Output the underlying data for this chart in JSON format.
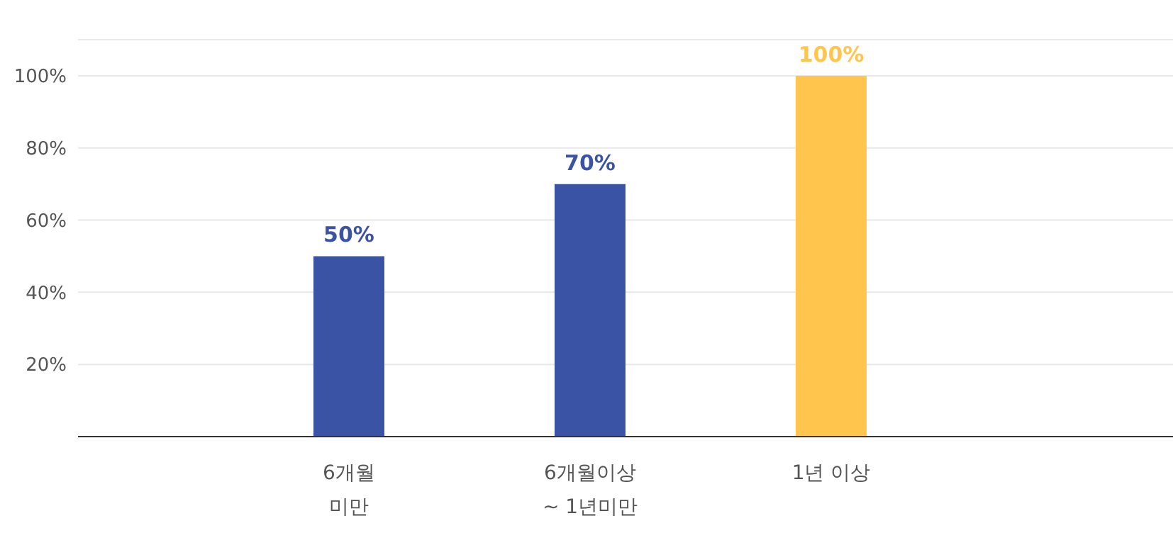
{
  "chart_data": {
    "type": "bar",
    "categories": [
      "6개월\n미만",
      "6개월이상\n~ 1년미만",
      "1년 이상"
    ],
    "values": [
      50,
      70,
      100
    ],
    "colors": [
      "#3a53a4",
      "#3a53a4",
      "#ffc54d"
    ],
    "value_labels": [
      "50%",
      "70%",
      "100%"
    ],
    "ylim": [
      0,
      110
    ],
    "yticks": [
      {
        "value": 20,
        "label": "20%"
      },
      {
        "value": 40,
        "label": "40%"
      },
      {
        "value": 60,
        "label": "60%"
      },
      {
        "value": 80,
        "label": "80%"
      },
      {
        "value": 100,
        "label": "100%"
      }
    ],
    "grid": "y"
  }
}
